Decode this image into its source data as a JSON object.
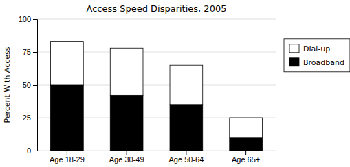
{
  "chart_data": {
    "type": "bar",
    "stacked": true,
    "title": "Access Speed Disparities, 2005",
    "ylabel": "Percent With Access",
    "categories": [
      "Age 18-29",
      "Age 30-49",
      "Age 50-64",
      "Age 65+"
    ],
    "series": [
      {
        "name": "Broadband",
        "color": "#000000",
        "values": [
          50,
          42,
          35,
          10
        ]
      },
      {
        "name": "Dial-up",
        "color": "#ffffff",
        "values": [
          33,
          36,
          30,
          15
        ]
      }
    ],
    "ylim": [
      0,
      100
    ],
    "yticks": [
      0,
      25,
      50,
      75,
      100
    ],
    "grid": true,
    "legend": "right"
  }
}
